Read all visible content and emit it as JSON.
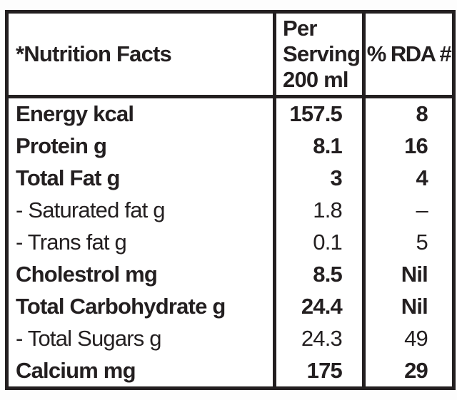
{
  "colors": {
    "text": "#231f20",
    "border": "#231f20",
    "table_background": "#ffffff",
    "page_background": "#fdfdfd"
  },
  "table": {
    "header": {
      "title": "*Nutrition Facts",
      "per_serving": "Per\nServing\n200 ml",
      "rda": "% RDA #"
    },
    "rows": [
      {
        "label": "Energy kcal",
        "per_serving": "157.5",
        "rda": "8"
      },
      {
        "label": "Protein g",
        "per_serving": "8.1",
        "rda": "16"
      },
      {
        "label": "Total Fat g",
        "per_serving": "3",
        "rda": "4"
      },
      {
        "label": "- Saturated fat g",
        "per_serving": "1.8",
        "rda": "–"
      },
      {
        "label": "- Trans fat g",
        "per_serving": "0.1",
        "rda": "5"
      },
      {
        "label": "Cholestrol mg",
        "per_serving": "8.5",
        "rda": "Nil"
      },
      {
        "label": "Total Carbohydrate g",
        "per_serving": "24.4",
        "rda": "Nil"
      },
      {
        "label": "- Total Sugars g",
        "per_serving": "24.3",
        "rda": "49"
      },
      {
        "label": "Calcium mg",
        "per_serving": "175",
        "rda": "29"
      }
    ]
  }
}
